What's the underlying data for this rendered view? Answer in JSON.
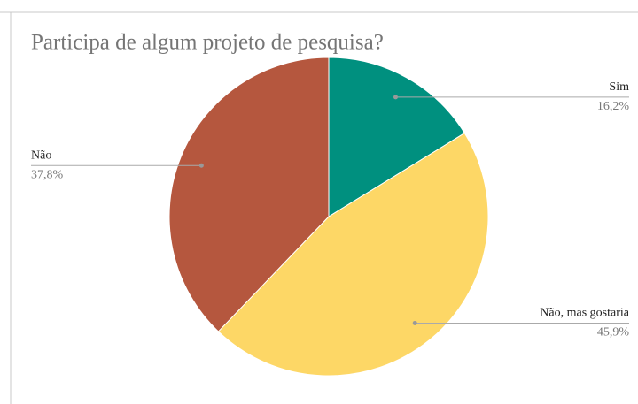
{
  "chart_data": {
    "type": "pie",
    "title": "Participa de algum projeto de pesquisa?",
    "categories": [
      "Sim",
      "Não, mas gostaria",
      "Não"
    ],
    "values": [
      16.2,
      45.9,
      37.8
    ],
    "value_labels": [
      "16,2%",
      "45,9%",
      "37,8%"
    ],
    "colors": [
      "#00907f",
      "#fdd766",
      "#b5573e"
    ]
  }
}
